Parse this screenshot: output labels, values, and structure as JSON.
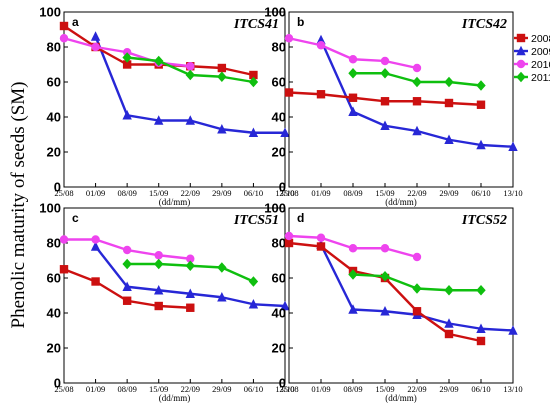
{
  "chart_data": {
    "type": "line",
    "ylabel": "Phenolic maturity of seeds (SM)",
    "xlabel": "(dd/mm)",
    "x": [
      "25/08",
      "01/09",
      "08/09",
      "15/09",
      "22/09",
      "29/09",
      "06/10",
      "13/10"
    ],
    "ylim": [
      0,
      100
    ],
    "yticks": [
      0,
      20,
      40,
      60,
      80,
      100
    ],
    "legend": {
      "placement": "right",
      "entries": [
        {
          "name": "2008",
          "color": "#cc1010",
          "marker": "square"
        },
        {
          "name": "2009",
          "color": "#2727d6",
          "marker": "triangle"
        },
        {
          "name": "2010",
          "color": "#ee44ee",
          "marker": "circle"
        },
        {
          "name": "2011",
          "color": "#0fbf0f",
          "marker": "diamond"
        }
      ]
    },
    "panels": [
      {
        "letter": "a",
        "title": "ITCS41",
        "series": [
          {
            "name": "2008",
            "values": [
              92,
              80,
              70,
              70,
              69,
              68,
              64,
              null
            ]
          },
          {
            "name": "2009",
            "values": [
              null,
              86,
              41,
              38,
              38,
              33,
              31,
              31
            ]
          },
          {
            "name": "2010",
            "values": [
              85,
              80,
              77,
              71,
              69,
              null,
              null,
              null
            ]
          },
          {
            "name": "2011",
            "values": [
              null,
              null,
              74,
              72,
              64,
              63,
              60,
              null
            ]
          }
        ]
      },
      {
        "letter": "b",
        "title": "ITCS42",
        "series": [
          {
            "name": "2008",
            "values": [
              54,
              53,
              51,
              49,
              49,
              48,
              47,
              null
            ]
          },
          {
            "name": "2009",
            "values": [
              null,
              84,
              43,
              35,
              32,
              27,
              24,
              23
            ]
          },
          {
            "name": "2010",
            "values": [
              85,
              81,
              73,
              72,
              68,
              null,
              null,
              null
            ]
          },
          {
            "name": "2011",
            "values": [
              null,
              null,
              65,
              65,
              60,
              60,
              58,
              null
            ]
          }
        ]
      },
      {
        "letter": "c",
        "title": "ITCS51",
        "series": [
          {
            "name": "2008",
            "values": [
              65,
              58,
              47,
              44,
              43,
              null,
              null,
              null
            ]
          },
          {
            "name": "2009",
            "values": [
              null,
              78,
              55,
              53,
              51,
              49,
              45,
              44
            ]
          },
          {
            "name": "2010",
            "values": [
              82,
              82,
              76,
              73,
              71,
              null,
              null,
              null
            ]
          },
          {
            "name": "2011",
            "values": [
              null,
              null,
              68,
              68,
              67,
              66,
              58,
              null
            ]
          }
        ]
      },
      {
        "letter": "d",
        "title": "ITCS52",
        "series": [
          {
            "name": "2008",
            "values": [
              80,
              78,
              64,
              60,
              41,
              28,
              24,
              null
            ]
          },
          {
            "name": "2009",
            "values": [
              null,
              79,
              42,
              41,
              39,
              34,
              31,
              30
            ]
          },
          {
            "name": "2010",
            "values": [
              84,
              83,
              77,
              77,
              72,
              null,
              null,
              null
            ]
          },
          {
            "name": "2011",
            "values": [
              null,
              null,
              62,
              61,
              54,
              53,
              53,
              null
            ]
          }
        ]
      }
    ]
  }
}
